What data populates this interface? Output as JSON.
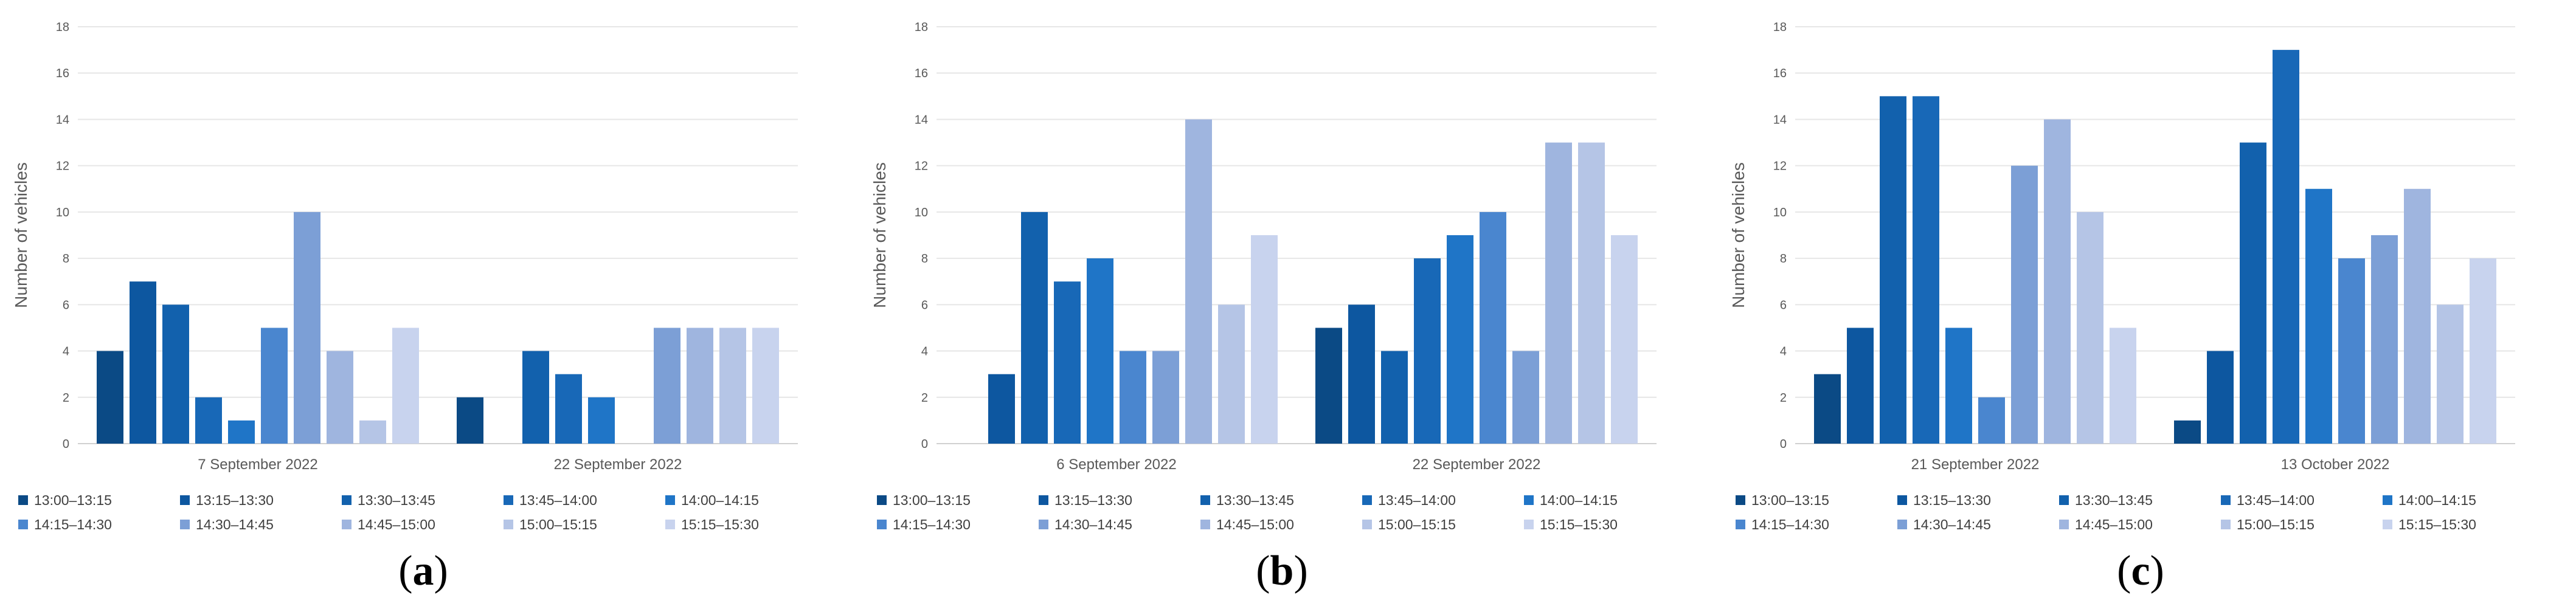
{
  "legend": [
    "13:00–13:15",
    "13:15–13:30",
    "13:30–13:45",
    "13:45–14:00",
    "14:00–14:15",
    "14:15–14:30",
    "14:30–14:45",
    "14:45–15:00",
    "15:00–15:15",
    "15:15–15:30"
  ],
  "colors": [
    "#0b4a85",
    "#0d57a0",
    "#1261ad",
    "#1868b7",
    "#1f75c7",
    "#4a86cf",
    "#7c9fd6",
    "#9fb5df",
    "#b5c5e6",
    "#c8d3ee"
  ],
  "chart_data": [
    {
      "type": "bar",
      "panel_label": "a",
      "ylabel": "Number of vehicles",
      "ylim": [
        0,
        18
      ],
      "yticks": [
        0,
        2,
        4,
        6,
        8,
        10,
        12,
        14,
        16,
        18
      ],
      "categories": [
        "7 September 2022",
        "22 September 2022"
      ],
      "series": [
        {
          "name": "13:00–13:15",
          "values": [
            4,
            2
          ]
        },
        {
          "name": "13:15–13:30",
          "values": [
            7,
            0
          ]
        },
        {
          "name": "13:30–13:45",
          "values": [
            6,
            4
          ]
        },
        {
          "name": "13:45–14:00",
          "values": [
            2,
            3
          ]
        },
        {
          "name": "14:00–14:15",
          "values": [
            1,
            2
          ]
        },
        {
          "name": "14:15–14:30",
          "values": [
            5,
            0
          ]
        },
        {
          "name": "14:30–14:45",
          "values": [
            10,
            5
          ]
        },
        {
          "name": "14:45–15:00",
          "values": [
            4,
            5
          ]
        },
        {
          "name": "15:00–15:15",
          "values": [
            1,
            5
          ]
        },
        {
          "name": "15:15–15:30",
          "values": [
            5,
            5
          ]
        }
      ]
    },
    {
      "type": "bar",
      "panel_label": "b",
      "ylabel": "Number of vehicles",
      "ylim": [
        0,
        18
      ],
      "yticks": [
        0,
        2,
        4,
        6,
        8,
        10,
        12,
        14,
        16,
        18
      ],
      "categories": [
        "6 September 2022",
        "22 September 2022"
      ],
      "series": [
        {
          "name": "13:00–13:15",
          "values": [
            0,
            5
          ]
        },
        {
          "name": "13:15–13:30",
          "values": [
            3,
            6
          ]
        },
        {
          "name": "13:30–13:45",
          "values": [
            10,
            4
          ]
        },
        {
          "name": "13:45–14:00",
          "values": [
            7,
            8
          ]
        },
        {
          "name": "14:00–14:15",
          "values": [
            8,
            9
          ]
        },
        {
          "name": "14:15–14:30",
          "values": [
            4,
            10
          ]
        },
        {
          "name": "14:30–14:45",
          "values": [
            4,
            4
          ]
        },
        {
          "name": "14:45–15:00",
          "values": [
            14,
            13
          ]
        },
        {
          "name": "15:00–15:15",
          "values": [
            6,
            13
          ]
        },
        {
          "name": "15:15–15:30",
          "values": [
            9,
            9
          ]
        }
      ]
    },
    {
      "type": "bar",
      "panel_label": "c",
      "ylabel": "Number of vehicles",
      "ylim": [
        0,
        18
      ],
      "yticks": [
        0,
        2,
        4,
        6,
        8,
        10,
        12,
        14,
        16,
        18
      ],
      "categories": [
        "21 September 2022",
        "13 October 2022"
      ],
      "series": [
        {
          "name": "13:00–13:15",
          "values": [
            3,
            1
          ]
        },
        {
          "name": "13:15–13:30",
          "values": [
            5,
            4
          ]
        },
        {
          "name": "13:30–13:45",
          "values": [
            15,
            13
          ]
        },
        {
          "name": "13:45–14:00",
          "values": [
            15,
            17
          ]
        },
        {
          "name": "14:00–14:15",
          "values": [
            5,
            11
          ]
        },
        {
          "name": "14:15–14:30",
          "values": [
            2,
            8
          ]
        },
        {
          "name": "14:30–14:45",
          "values": [
            12,
            9
          ]
        },
        {
          "name": "14:45–15:00",
          "values": [
            14,
            11
          ]
        },
        {
          "name": "15:00–15:15",
          "values": [
            10,
            6
          ]
        },
        {
          "name": "15:15–15:30",
          "values": [
            5,
            8
          ]
        }
      ]
    }
  ]
}
